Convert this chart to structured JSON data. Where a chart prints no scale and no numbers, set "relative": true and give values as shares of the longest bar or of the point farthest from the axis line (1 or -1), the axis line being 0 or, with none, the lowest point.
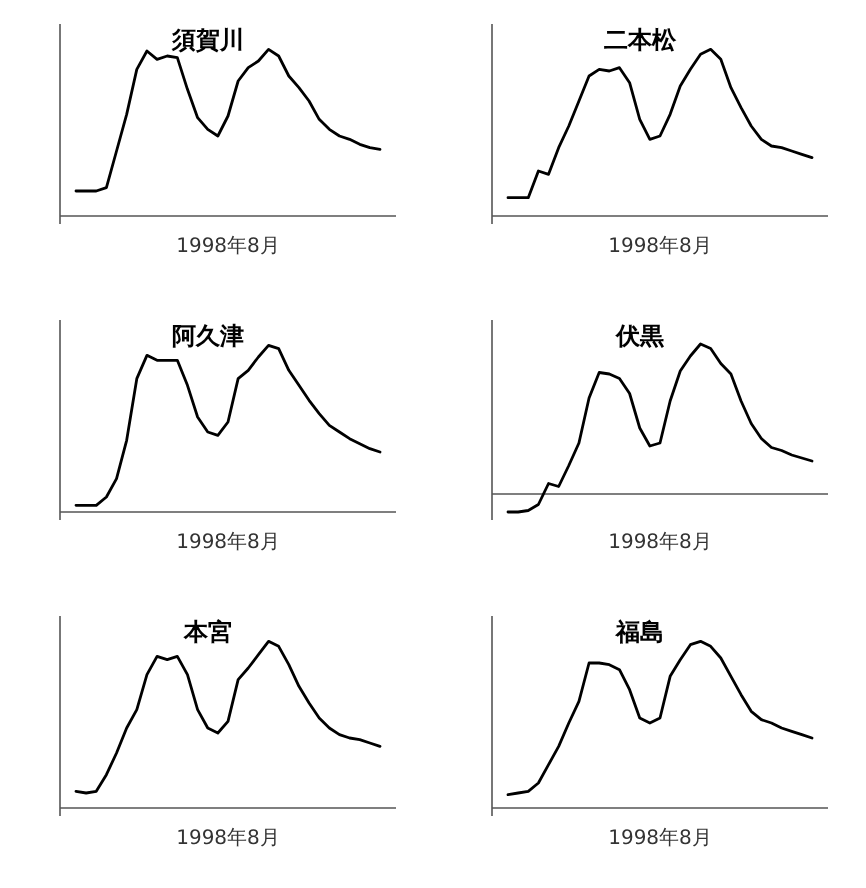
{
  "chart_data": [
    {
      "type": "line",
      "title": "須賀川",
      "xlabel": "1998年8月",
      "relative": true,
      "color": "#000000",
      "categories": [
        null,
        null,
        null,
        null,
        null,
        null,
        null,
        null,
        null,
        null,
        null,
        null,
        null,
        null,
        null,
        null,
        null,
        null,
        null,
        null,
        null,
        null,
        null,
        null,
        null,
        null,
        null,
        null,
        null,
        null,
        null
      ],
      "values": [
        0.15,
        0.15,
        0.15,
        0.17,
        0.39,
        0.61,
        0.88,
        0.99,
        0.94,
        0.96,
        0.95,
        0.76,
        0.59,
        0.52,
        0.48,
        0.6,
        0.81,
        0.89,
        0.93,
        1,
        0.96,
        0.84,
        0.77,
        0.69,
        0.58,
        0.52,
        0.48,
        0.46,
        0.43,
        0.41,
        0.4
      ]
    },
    {
      "type": "line",
      "title": "二本松",
      "xlabel": "1998年8月",
      "relative": true,
      "color": "#000000",
      "categories": [
        null,
        null,
        null,
        null,
        null,
        null,
        null,
        null,
        null,
        null,
        null,
        null,
        null,
        null,
        null,
        null,
        null,
        null,
        null,
        null,
        null,
        null,
        null,
        null,
        null,
        null,
        null,
        null,
        null,
        null,
        null
      ],
      "values": [
        0.11,
        0.11,
        0.11,
        0.27,
        0.25,
        0.41,
        0.54,
        0.69,
        0.84,
        0.88,
        0.87,
        0.89,
        0.8,
        0.58,
        0.46,
        0.48,
        0.61,
        0.78,
        0.88,
        0.97,
        1,
        0.94,
        0.77,
        0.65,
        0.54,
        0.46,
        0.42,
        0.41,
        0.39,
        0.37,
        0.35
      ]
    },
    {
      "type": "line",
      "title": "阿久津",
      "xlabel": "1998年8月",
      "relative": true,
      "color": "#000000",
      "categories": [
        null,
        null,
        null,
        null,
        null,
        null,
        null,
        null,
        null,
        null,
        null,
        null,
        null,
        null,
        null,
        null,
        null,
        null,
        null,
        null,
        null,
        null,
        null,
        null,
        null,
        null,
        null,
        null,
        null,
        null,
        null
      ],
      "values": [
        0.04,
        0.04,
        0.04,
        0.09,
        0.2,
        0.43,
        0.8,
        0.94,
        0.91,
        0.91,
        0.91,
        0.76,
        0.57,
        0.48,
        0.46,
        0.54,
        0.8,
        0.85,
        0.93,
        1,
        0.98,
        0.85,
        0.76,
        0.67,
        0.59,
        0.52,
        0.48,
        0.44,
        0.41,
        0.38,
        0.36
      ]
    },
    {
      "type": "line",
      "title": "伏黒",
      "xlabel": "1998年8月",
      "relative": true,
      "color": "#000000",
      "categories": [
        null,
        null,
        null,
        null,
        null,
        null,
        null,
        null,
        null,
        null,
        null,
        null,
        null,
        null,
        null,
        null,
        null,
        null,
        null,
        null,
        null,
        null,
        null,
        null,
        null,
        null,
        null,
        null,
        null,
        null,
        null
      ],
      "values": [
        -0.12,
        -0.12,
        -0.11,
        -0.07,
        0.07,
        0.05,
        0.19,
        0.34,
        0.64,
        0.81,
        0.8,
        0.77,
        0.67,
        0.44,
        0.32,
        0.34,
        0.62,
        0.82,
        0.92,
        1,
        0.97,
        0.87,
        0.8,
        0.62,
        0.47,
        0.37,
        0.31,
        0.29,
        0.26,
        0.24,
        0.22
      ]
    },
    {
      "type": "line",
      "title": "本宮",
      "xlabel": "1998年8月",
      "relative": true,
      "color": "#000000",
      "categories": [
        null,
        null,
        null,
        null,
        null,
        null,
        null,
        null,
        null,
        null,
        null,
        null,
        null,
        null,
        null,
        null,
        null,
        null,
        null,
        null,
        null,
        null,
        null,
        null,
        null,
        null,
        null,
        null,
        null,
        null,
        null
      ],
      "values": [
        0.1,
        0.09,
        0.1,
        0.2,
        0.33,
        0.48,
        0.59,
        0.8,
        0.91,
        0.89,
        0.91,
        0.8,
        0.59,
        0.48,
        0.45,
        0.52,
        0.77,
        0.84,
        0.92,
        1,
        0.97,
        0.86,
        0.73,
        0.63,
        0.54,
        0.48,
        0.44,
        0.42,
        0.41,
        0.39,
        0.37
      ]
    },
    {
      "type": "line",
      "title": "福島",
      "xlabel": "1998年8月",
      "relative": true,
      "color": "#000000",
      "categories": [
        null,
        null,
        null,
        null,
        null,
        null,
        null,
        null,
        null,
        null,
        null,
        null,
        null,
        null,
        null,
        null,
        null,
        null,
        null,
        null,
        null,
        null,
        null,
        null,
        null,
        null,
        null,
        null,
        null,
        null,
        null
      ],
      "values": [
        0.08,
        0.09,
        0.1,
        0.15,
        0.26,
        0.37,
        0.51,
        0.64,
        0.87,
        0.87,
        0.86,
        0.83,
        0.71,
        0.54,
        0.51,
        0.54,
        0.79,
        0.89,
        0.98,
        1,
        0.97,
        0.9,
        0.79,
        0.68,
        0.58,
        0.53,
        0.51,
        0.48,
        0.46,
        0.44,
        0.42
      ]
    }
  ]
}
